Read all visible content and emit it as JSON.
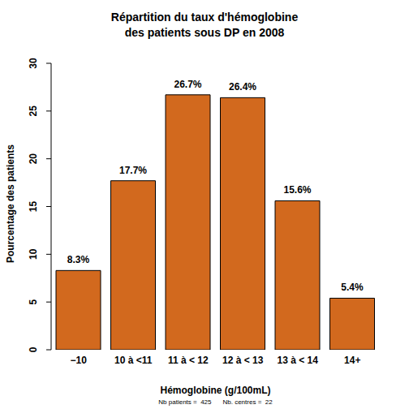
{
  "chart_data": {
    "type": "bar",
    "title": "Répartition du taux d'hémoglobine\ndes patients sous DP en 2008",
    "x_label": "Hémoglobine (g/100mL)",
    "y_label": "Pourcentage des patients",
    "annotations": [
      "Nb patients =  425",
      "Nb. centres =  22"
    ],
    "categories": [
      "−10",
      "10 à <11",
      "11 à < 12",
      "12 à < 13",
      "13 à < 14",
      "14+"
    ],
    "values": [
      8.3,
      17.7,
      26.7,
      26.4,
      15.6,
      5.4
    ],
    "value_labels": [
      "8.3%",
      "17.7%",
      "26.7%",
      "26.4%",
      "15.6%",
      "5.4%"
    ],
    "data_labels": true,
    "color": "#d2691e",
    "ylim": [
      0,
      30
    ],
    "yticks": [
      0,
      5,
      10,
      15,
      20,
      25,
      30
    ],
    "grid": false
  }
}
